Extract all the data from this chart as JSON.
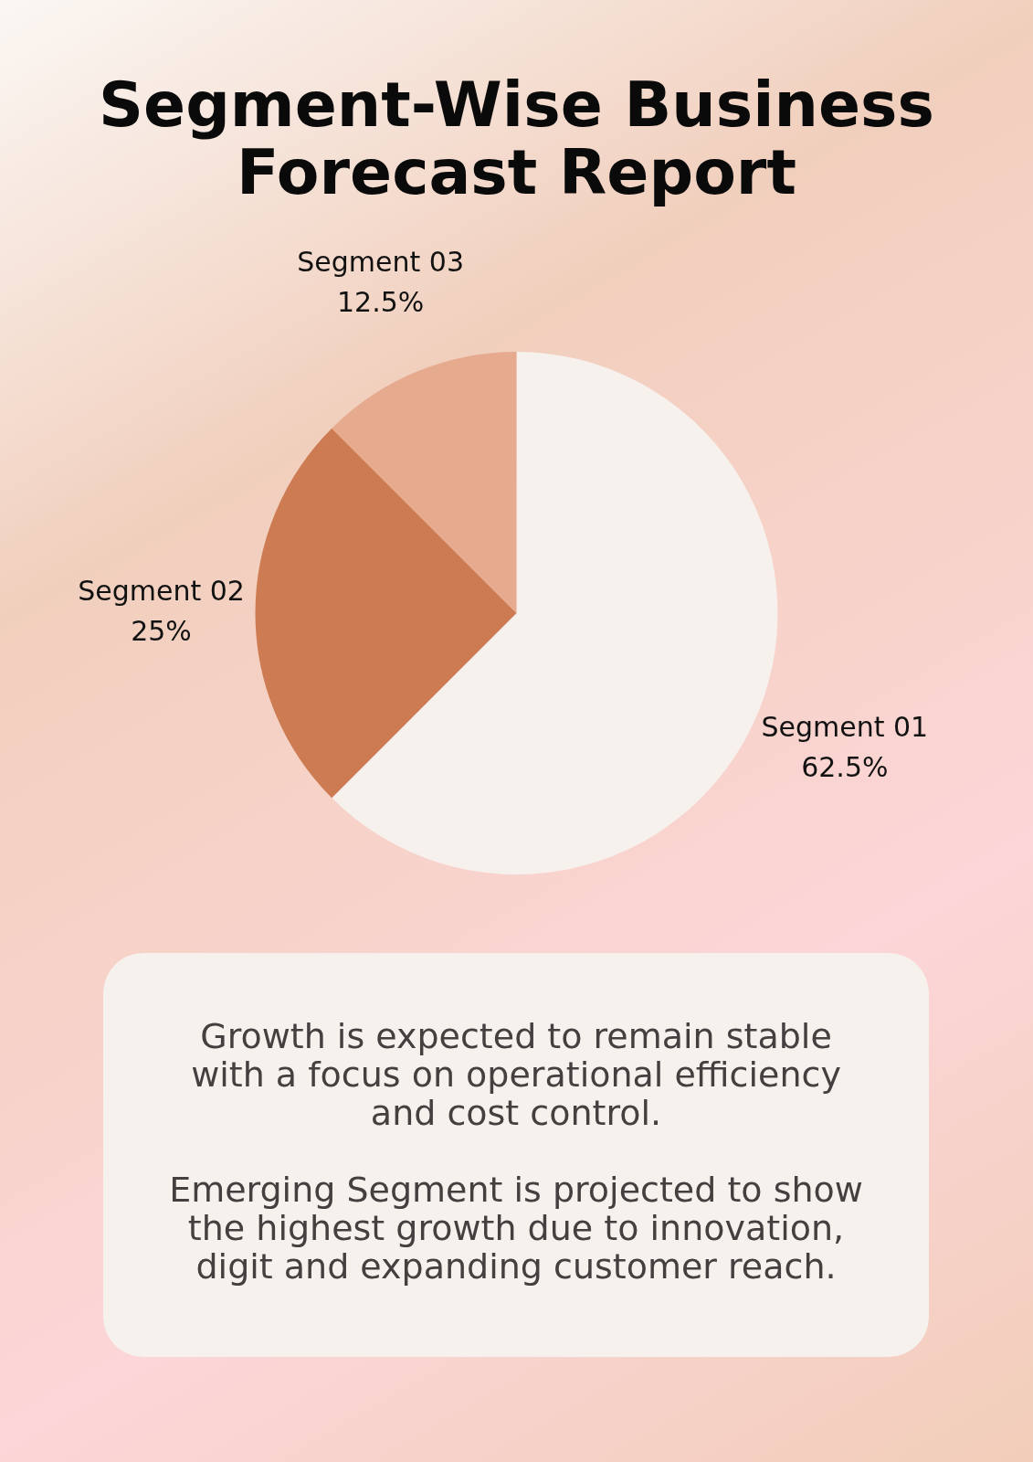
{
  "chart_data": {
    "type": "pie",
    "title": "Segment-Wise Business Forecast Report",
    "categories": [
      "Segment 01",
      "Segment 02",
      "Segment 03"
    ],
    "values": [
      62.5,
      25,
      12.5
    ],
    "value_labels": [
      "62.5%",
      "25%",
      "12.5%"
    ],
    "colors": [
      "#f7f1ee",
      "#cd7b52",
      "#e6ab8f"
    ],
    "legend": false,
    "annotations": [
      "Growth is expected to remain stable with a focus on operational efficiency and cost control.",
      "Emerging Segment is projected to show the highest growth due to innovation, digit and expanding customer reach."
    ]
  }
}
